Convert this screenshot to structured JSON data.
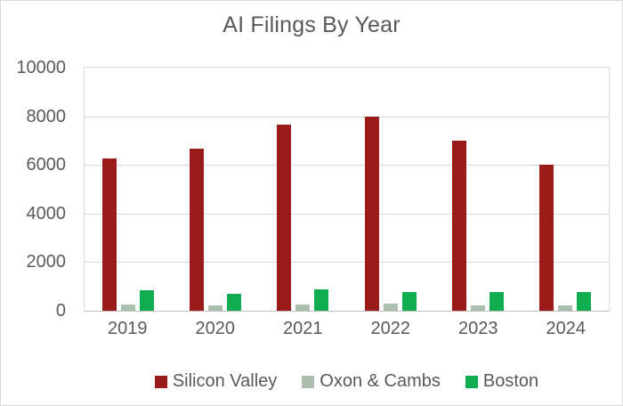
{
  "chart_data": {
    "type": "bar",
    "title": "AI Filings By Year",
    "categories": [
      "2019",
      "2020",
      "2021",
      "2022",
      "2023",
      "2024"
    ],
    "series": [
      {
        "name": "Silicon Valley",
        "color": "#9B1B1B",
        "values": [
          6250,
          6650,
          7650,
          8000,
          7000,
          6000
        ]
      },
      {
        "name": "Oxon & Cambs",
        "color": "#ACBFAE",
        "values": [
          250,
          230,
          270,
          300,
          230,
          210
        ]
      },
      {
        "name": "Boston",
        "color": "#0FAD4F",
        "values": [
          850,
          700,
          880,
          770,
          780,
          770
        ]
      }
    ],
    "xlabel": "",
    "ylabel": "",
    "ylim": [
      0,
      10000
    ],
    "yticks": [
      0,
      2000,
      4000,
      6000,
      8000,
      10000
    ],
    "grid": "horizontal",
    "legend_position": "bottom"
  },
  "colors": {
    "text": "#595959",
    "gridline": "#D9D9D9",
    "axis_line": "#BFBFBF",
    "chart_border": "#D9D9D9",
    "background": "#FFFFFF"
  }
}
